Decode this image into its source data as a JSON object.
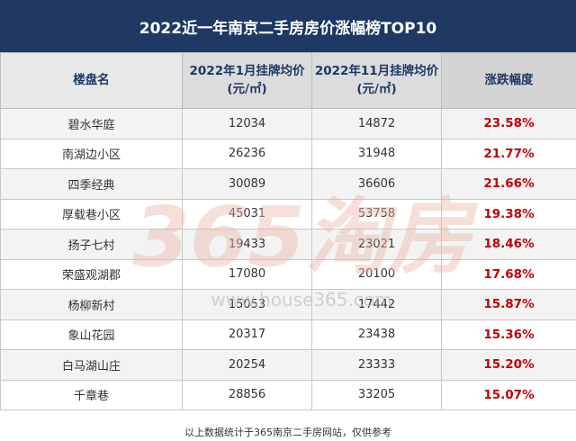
{
  "title": "2022近一年南京二手房房价涨幅榜TOP10",
  "headers": {
    "name": "楼盘名",
    "jan_line1": "2022年1月挂牌均价",
    "jan_line2": "(元/㎡)",
    "nov_line1": "2022年11月挂牌均价",
    "nov_line2": "(元/㎡)",
    "change": "涨跌幅度"
  },
  "rows": [
    {
      "name": "碧水华庭",
      "jan": "12034",
      "nov": "14872",
      "change": "23.58%"
    },
    {
      "name": "南湖边小区",
      "jan": "26236",
      "nov": "31948",
      "change": "21.77%"
    },
    {
      "name": "四季经典",
      "jan": "30089",
      "nov": "36606",
      "change": "21.66%"
    },
    {
      "name": "厚载巷小区",
      "jan": "45031",
      "nov": "53758",
      "change": "19.38%"
    },
    {
      "name": "扬子七村",
      "jan": "19433",
      "nov": "23021",
      "change": "18.46%"
    },
    {
      "name": "荣盛观湖郡",
      "jan": "17080",
      "nov": "20100",
      "change": "17.68%"
    },
    {
      "name": "杨柳新村",
      "jan": "15053",
      "nov": "17442",
      "change": "15.87%"
    },
    {
      "name": "象山花园",
      "jan": "20317",
      "nov": "23438",
      "change": "15.36%"
    },
    {
      "name": "白马湖山庄",
      "jan": "20254",
      "nov": "23333",
      "change": "15.20%"
    },
    {
      "name": "千章巷",
      "jan": "28856",
      "nov": "33205",
      "change": "15.07%"
    }
  ],
  "watermark": {
    "logo_text": "365淘房",
    "url_text": "www.house365.com"
  },
  "footer": "以上数据统计于365南京二手房网站，仅供参考",
  "colors": {
    "title_bg": "#1f3864",
    "header_text": "#1f3864",
    "change_text": "#c00000",
    "watermark": "#e8b9a8"
  }
}
